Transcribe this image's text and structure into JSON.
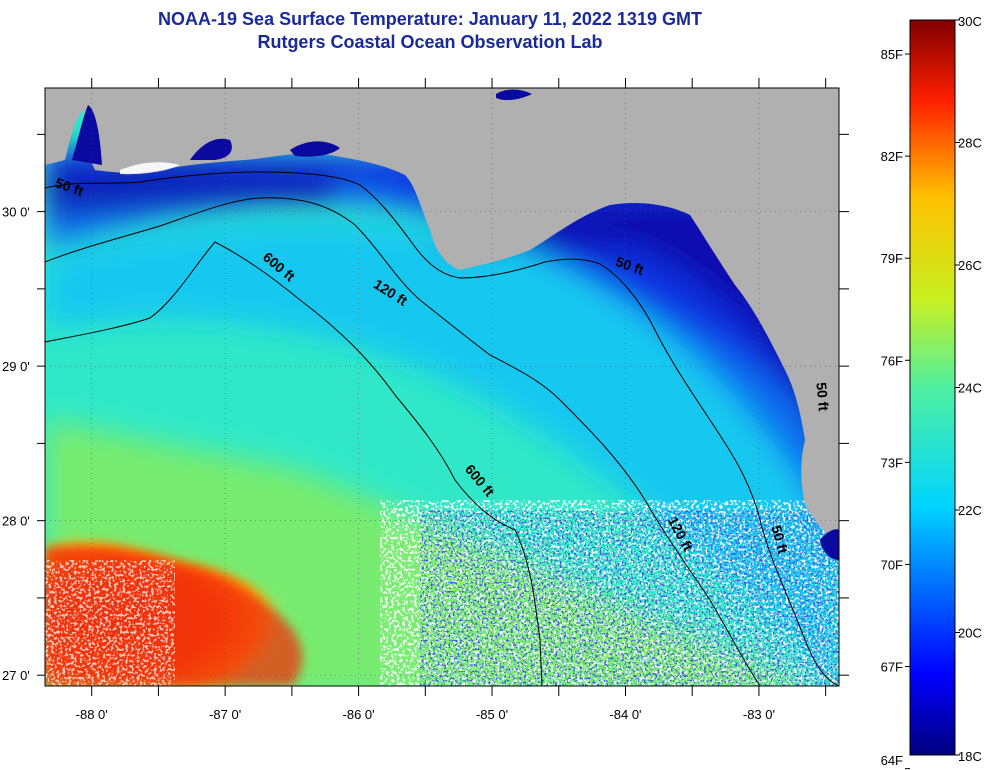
{
  "title_line_1": "NOAA-19 Sea Surface Temperature:  January 11, 2022 1319 GMT",
  "title_line_2": "Rutgers Coastal Ocean Observation Lab",
  "map": {
    "lon_ticks": [
      {
        "value": -88,
        "label": "-88 0'"
      },
      {
        "value": -87,
        "label": "-87 0'"
      },
      {
        "value": -86,
        "label": "-86 0'"
      },
      {
        "value": -85,
        "label": "-85 0'"
      },
      {
        "value": -84,
        "label": "-84 0'"
      },
      {
        "value": -83,
        "label": "-83 0'"
      }
    ],
    "lat_ticks": [
      {
        "value": 30,
        "label": "30 0'"
      },
      {
        "value": 29,
        "label": "29 0'"
      },
      {
        "value": 28,
        "label": "28 0'"
      },
      {
        "value": 27,
        "label": "27 0'"
      }
    ],
    "lon_range": [
      -88.35,
      -82.4
    ],
    "lat_range": [
      26.93,
      30.8
    ],
    "colors": {
      "land": "#b0b0b0",
      "cloud": "#ffffff",
      "contour": "#000000",
      "grid": "#555555"
    },
    "isobath_labels": [
      {
        "text": "50 ft",
        "lon": -88.18,
        "lat": 30.13
      },
      {
        "text": "120 ft",
        "lon": -85.78,
        "lat": 29.45
      },
      {
        "text": "600 ft",
        "lon": -86.62,
        "lat": 29.62
      },
      {
        "text": "50 ft",
        "lon": -83.98,
        "lat": 29.62
      },
      {
        "text": "600 ft",
        "lon": -85.12,
        "lat": 28.24
      },
      {
        "text": "120 ft",
        "lon": -83.62,
        "lat": 27.9
      },
      {
        "text": "50 ft",
        "lon": -82.88,
        "lat": 27.87
      },
      {
        "text": "50 ft",
        "lon": -82.56,
        "lat": 28.8
      }
    ]
  },
  "colorbar": {
    "range_c": [
      18,
      30
    ],
    "fahrenheit_labels": [
      "85F",
      "82F",
      "79F",
      "76F",
      "73F",
      "70F",
      "67F",
      "64F"
    ],
    "celsius_labels": [
      "30C",
      "28C",
      "26C",
      "24C",
      "22C",
      "20C",
      "18C"
    ],
    "colormap": "jet"
  }
}
